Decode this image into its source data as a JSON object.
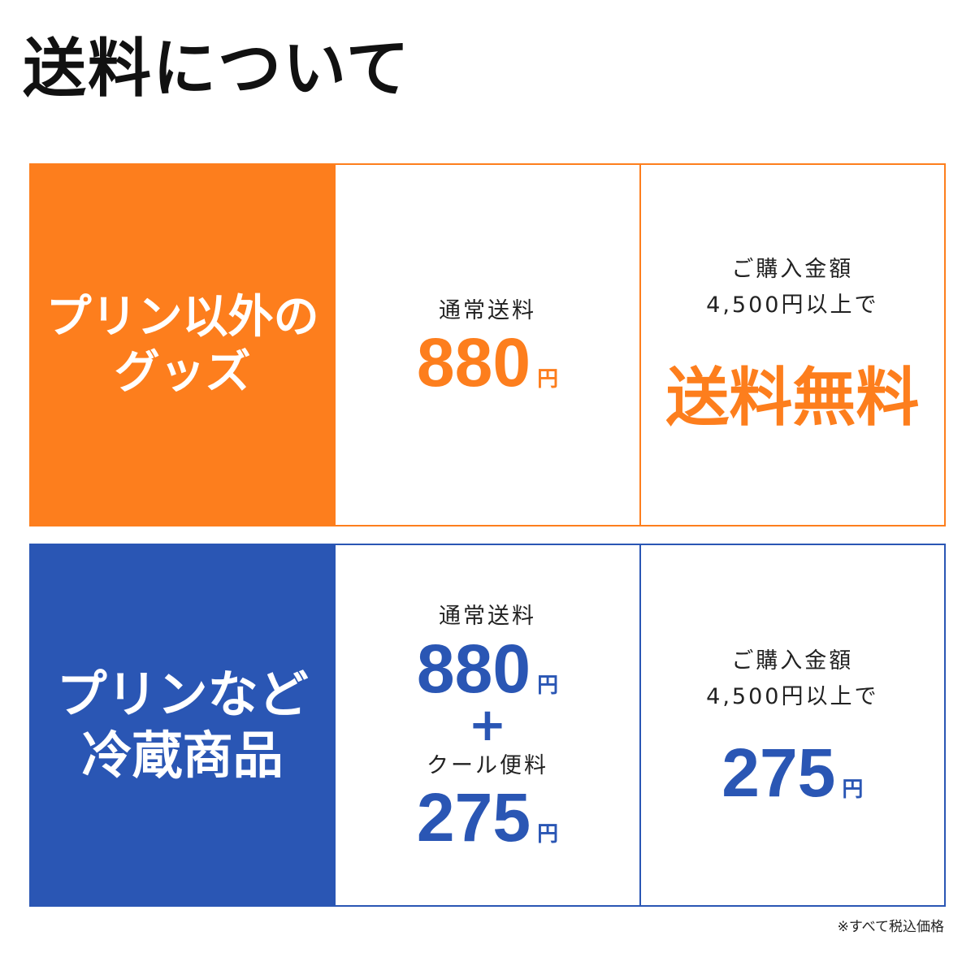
{
  "title": "送料について",
  "colors": {
    "orange": "#fd7e1d",
    "blue": "#2a56b4"
  },
  "rows": [
    {
      "heading_line1": "プリン以外の",
      "heading_line2": "グッズ",
      "standard_label": "通常送料",
      "standard_price": "880",
      "yen": "円",
      "condition_line1": "ご購入金額",
      "condition_line2": "4,500円以上で",
      "condition_result": "送料無料"
    },
    {
      "heading_line1": "プリンなど",
      "heading_line2": "冷蔵商品",
      "standard_label": "通常送料",
      "standard_price": "880",
      "yen": "円",
      "plus": "+",
      "cool_label": "クール便料",
      "cool_price": "275",
      "condition_line1": "ご購入金額",
      "condition_line2": "4,500円以上で",
      "condition_price": "275"
    }
  ],
  "note": "※すべて税込価格"
}
